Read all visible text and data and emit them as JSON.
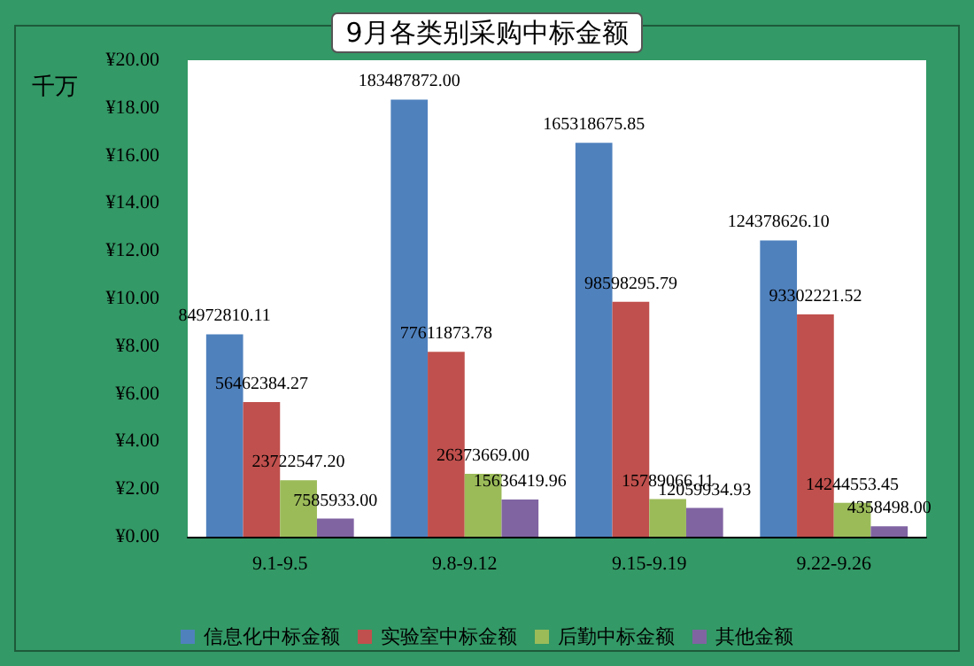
{
  "chart_data": {
    "type": "bar",
    "title": "9月各类别采购中标金额",
    "ylabel": "千万",
    "categories": [
      "9.1-9.5",
      "9.8-9.12",
      "9.15-9.19",
      "9.22-9.26"
    ],
    "series": [
      {
        "name": "信息化中标金额",
        "color": "#4f81bd",
        "values": [
          8.497281011,
          18.3487872,
          16.531867585,
          12.43786261
        ]
      },
      {
        "name": "实验室中标金额",
        "color": "#c0504d",
        "values": [
          5.646238427,
          7.761187378,
          9.859829579,
          9.330222152
        ]
      },
      {
        "name": "后勤中标金额",
        "color": "#9bbb59",
        "values": [
          2.37225472,
          2.6373669,
          1.578906611,
          1.424455345
        ]
      },
      {
        "name": "其他金额",
        "color": "#8064a2",
        "values": [
          0.7585933,
          1.563641996,
          1.205993493,
          0.4358498
        ]
      }
    ],
    "annotations": [
      "84972810.11",
      "183487872.00",
      "165318675.85",
      "124378626.10",
      "56462384.27",
      "77611873.78",
      "98598295.79",
      "93302221.52",
      "23722547.20",
      "26373669.00",
      "15789066.11",
      "14244553.45",
      "7585933.00",
      "15636419.96",
      "12059934.93",
      "4358498.00"
    ],
    "ylim": [
      0,
      20
    ],
    "yticks": [
      {
        "value": 0,
        "label": "¥0.00"
      },
      {
        "value": 2,
        "label": "¥2.00"
      },
      {
        "value": 4,
        "label": "¥4.00"
      },
      {
        "value": 6,
        "label": "¥6.00"
      },
      {
        "value": 8,
        "label": "¥8.00"
      },
      {
        "value": 10,
        "label": "¥10.00"
      },
      {
        "value": 12,
        "label": "¥12.00"
      },
      {
        "value": 14,
        "label": "¥14.00"
      },
      {
        "value": 16,
        "label": "¥16.00"
      },
      {
        "value": 18,
        "label": "¥18.00"
      },
      {
        "value": 20,
        "label": "¥20.00"
      }
    ],
    "grid": false,
    "legend": "bottom"
  }
}
